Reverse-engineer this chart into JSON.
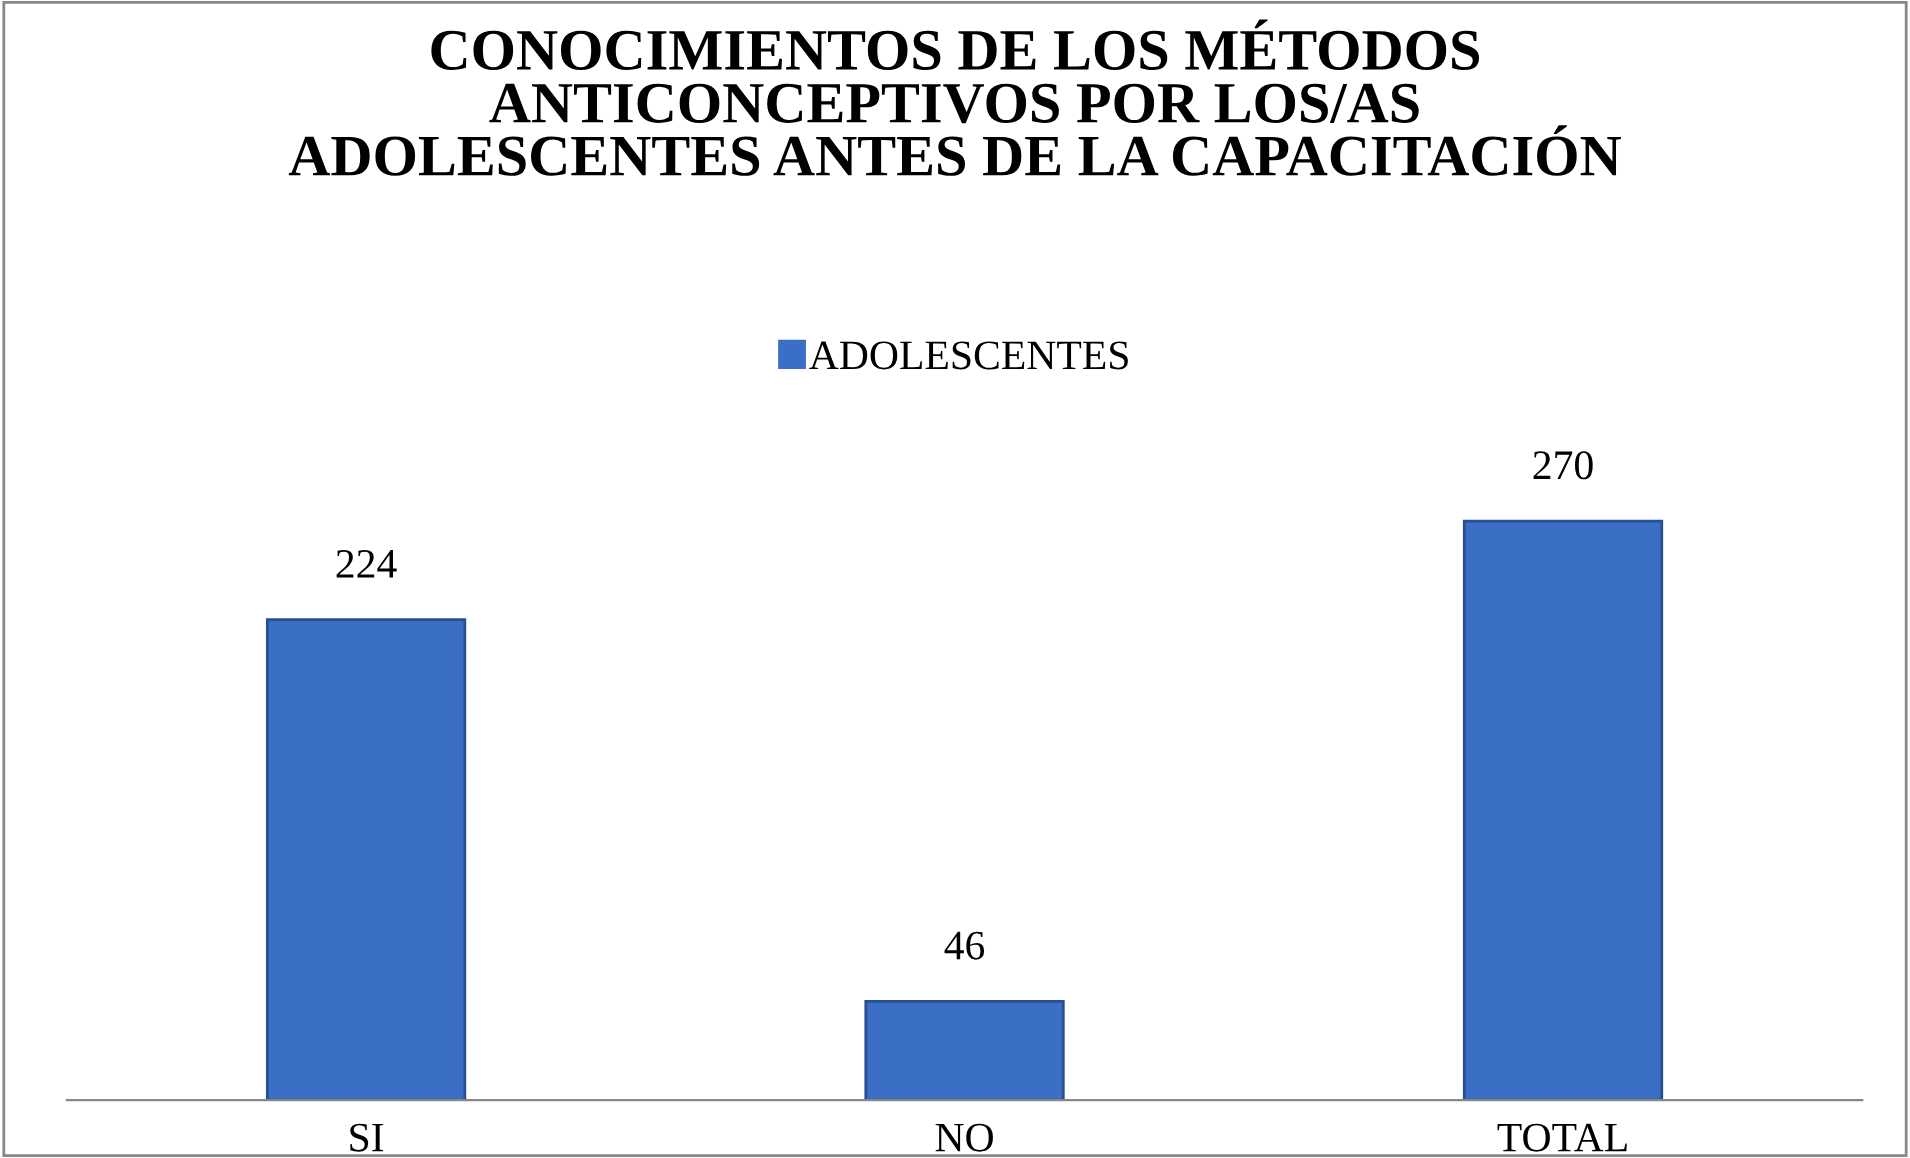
{
  "chart_data": {
    "type": "bar",
    "title": "CONOCIMIENTOS DE LOS MÉTODOS\nANTICONCEPTIVOS POR LOS/AS\nADOLESCENTES ANTES DE LA CAPACITACIÓN",
    "categories": [
      "SI",
      "NO",
      "TOTAL"
    ],
    "series": [
      {
        "name": "ADOLESCENTES",
        "color": "#3b6fc6",
        "values": [
          224,
          46,
          270
        ]
      }
    ],
    "data_labels": true,
    "legend": "top",
    "grid": false,
    "tick_labels": "x"
  }
}
